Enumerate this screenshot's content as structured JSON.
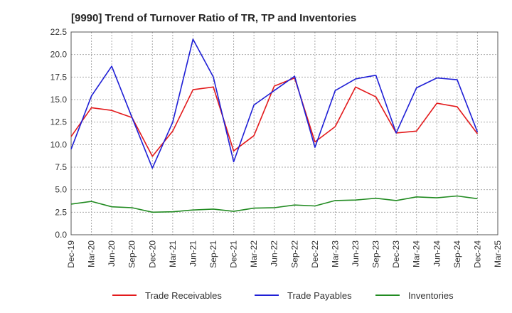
{
  "chart_data": {
    "type": "line",
    "title": "[9990]  Trend of Turnover Ratio of TR, TP and Inventories",
    "xlabel": "",
    "ylabel": "",
    "ylim": [
      0,
      22.5
    ],
    "yticks": [
      "0.0",
      "2.5",
      "5.0",
      "7.5",
      "10.0",
      "12.5",
      "15.0",
      "17.5",
      "20.0",
      "22.5"
    ],
    "x": [
      "Dec-19",
      "Mar-20",
      "Jun-20",
      "Sep-20",
      "Dec-20",
      "Mar-21",
      "Jun-21",
      "Sep-21",
      "Dec-21",
      "Mar-22",
      "Jun-22",
      "Sep-22",
      "Dec-22",
      "Mar-23",
      "Jun-23",
      "Sep-23",
      "Dec-23",
      "Mar-24",
      "Jun-24",
      "Sep-24",
      "Dec-24",
      "Mar-25"
    ],
    "grid": true,
    "legend_position": "bottom",
    "series": [
      {
        "name": "Trade Receivables",
        "color": "#e31a1c",
        "points": [
          [
            0,
            10.9
          ],
          [
            1,
            14.1
          ],
          [
            2,
            13.8
          ],
          [
            3,
            13.0
          ],
          [
            4,
            8.7
          ],
          [
            5,
            11.5
          ],
          [
            6,
            16.1
          ],
          [
            7,
            16.4
          ],
          [
            8,
            9.3
          ],
          [
            9,
            11.0
          ],
          [
            10,
            16.5
          ],
          [
            11,
            17.4
          ],
          [
            12,
            10.3
          ],
          [
            13,
            12.0
          ],
          [
            14,
            16.4
          ],
          [
            15,
            15.3
          ],
          [
            16,
            11.3
          ],
          [
            17,
            11.5
          ],
          [
            18,
            14.6
          ],
          [
            19,
            14.2
          ],
          [
            20,
            11.2
          ]
        ]
      },
      {
        "name": "Trade Payables",
        "color": "#1f1fd6",
        "points": [
          [
            0,
            9.5
          ],
          [
            1,
            15.4
          ],
          [
            2,
            18.7
          ],
          [
            3,
            13.0
          ],
          [
            4,
            7.4
          ],
          [
            5,
            12.5
          ],
          [
            6,
            21.7
          ],
          [
            7,
            17.5
          ],
          [
            8,
            8.1
          ],
          [
            9,
            14.4
          ],
          [
            10,
            16.0
          ],
          [
            11,
            17.6
          ],
          [
            12,
            9.7
          ],
          [
            13,
            16.0
          ],
          [
            14,
            17.3
          ],
          [
            15,
            17.7
          ],
          [
            16,
            11.3
          ],
          [
            17,
            16.3
          ],
          [
            18,
            17.4
          ],
          [
            19,
            17.2
          ],
          [
            20,
            11.4
          ]
        ]
      },
      {
        "name": "Inventories",
        "color": "#228b22",
        "points": [
          [
            0,
            3.4
          ],
          [
            1,
            3.7
          ],
          [
            2,
            3.1
          ],
          [
            3,
            3.0
          ],
          [
            4,
            2.5
          ],
          [
            5,
            2.55
          ],
          [
            6,
            2.75
          ],
          [
            7,
            2.85
          ],
          [
            8,
            2.6
          ],
          [
            9,
            2.95
          ],
          [
            10,
            3.0
          ],
          [
            11,
            3.3
          ],
          [
            12,
            3.2
          ],
          [
            13,
            3.8
          ],
          [
            14,
            3.85
          ],
          [
            15,
            4.05
          ],
          [
            16,
            3.8
          ],
          [
            17,
            4.2
          ],
          [
            18,
            4.1
          ],
          [
            19,
            4.3
          ],
          [
            20,
            4.0
          ]
        ]
      }
    ]
  }
}
